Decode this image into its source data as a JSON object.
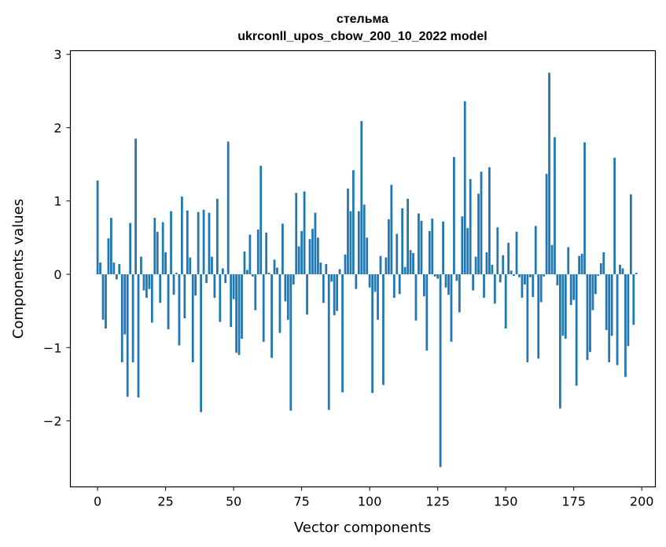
{
  "chart_data": {
    "type": "bar",
    "title_line1": "стельма",
    "title_line2": "ukrconll_upos_cbow_200_10_2022 model",
    "xlabel": "Vector components",
    "ylabel": "Components values",
    "xlim": [
      -10,
      205
    ],
    "ylim": [
      -2.9,
      3.05
    ],
    "xticks": [
      0,
      25,
      50,
      75,
      100,
      125,
      150,
      175,
      200
    ],
    "yticks": [
      -2,
      -1,
      0,
      1,
      2,
      3
    ],
    "ytick_labels": [
      "−2",
      "−1",
      "0",
      "1",
      "2",
      "3"
    ],
    "bar_color": "#1f77b4",
    "values": [
      1.28,
      0.16,
      -0.62,
      -0.74,
      0.49,
      0.77,
      0.16,
      -0.07,
      0.14,
      -1.2,
      -0.82,
      -1.67,
      0.7,
      -1.2,
      1.85,
      -1.68,
      0.24,
      -0.22,
      -0.32,
      -0.2,
      -0.66,
      0.77,
      0.58,
      -0.39,
      0.71,
      0.3,
      -0.75,
      0.86,
      -0.28,
      0.02,
      -0.97,
      1.06,
      -0.6,
      0.87,
      0.23,
      -1.2,
      -0.29,
      0.85,
      -1.88,
      0.88,
      -0.12,
      0.84,
      0.24,
      -0.32,
      1.03,
      -0.65,
      0.08,
      -0.12,
      1.81,
      -0.72,
      -0.34,
      -1.07,
      -1.1,
      -0.88,
      0.31,
      0.06,
      0.54,
      -0.03,
      -0.49,
      0.61,
      1.48,
      -0.92,
      0.57,
      0.02,
      -1.14,
      0.2,
      0.09,
      -0.8,
      0.69,
      -0.37,
      -0.62,
      -1.86,
      -0.14,
      1.11,
      0.38,
      0.59,
      1.13,
      -0.55,
      0.48,
      0.62,
      0.84,
      0.5,
      0.16,
      -0.39,
      0.14,
      -1.85,
      -0.1,
      -0.56,
      -0.5,
      0.07,
      -1.61,
      0.27,
      1.17,
      0.86,
      1.42,
      -0.2,
      0.86,
      2.09,
      0.95,
      0.5,
      -0.18,
      -1.62,
      -0.24,
      -0.62,
      0.25,
      -1.51,
      0.23,
      0.75,
      1.22,
      -0.32,
      0.55,
      -0.27,
      0.9,
      0.1,
      1.03,
      0.33,
      0.29,
      -0.63,
      0.83,
      0.73,
      -0.3,
      -1.04,
      0.59,
      0.76,
      -0.03,
      -0.06,
      -2.63,
      0.72,
      -0.18,
      -0.28,
      -0.92,
      1.6,
      -0.09,
      -0.52,
      0.79,
      2.36,
      0.63,
      1.3,
      -0.22,
      0.24,
      1.1,
      1.4,
      -0.32,
      0.3,
      1.46,
      0.13,
      -0.4,
      0.64,
      -0.11,
      0.26,
      -0.74,
      0.43,
      0.05,
      -0.02,
      0.58,
      -0.04,
      -0.32,
      -0.14,
      -1.2,
      -0.04,
      -0.31,
      0.66,
      -1.15,
      -0.38,
      -0.03,
      1.37,
      2.75,
      0.4,
      1.87,
      -0.15,
      -1.83,
      -0.84,
      -0.88,
      0.37,
      -0.42,
      -0.35,
      -1.52,
      0.25,
      0.28,
      1.8,
      -1.17,
      -1.06,
      -0.49,
      -0.27,
      -0.02,
      0.15,
      0.3,
      -0.76,
      -1.2,
      -0.84,
      1.59,
      -1.24,
      0.13,
      0.08,
      -1.4,
      -0.98,
      1.09,
      -0.69,
      0.02
    ]
  }
}
